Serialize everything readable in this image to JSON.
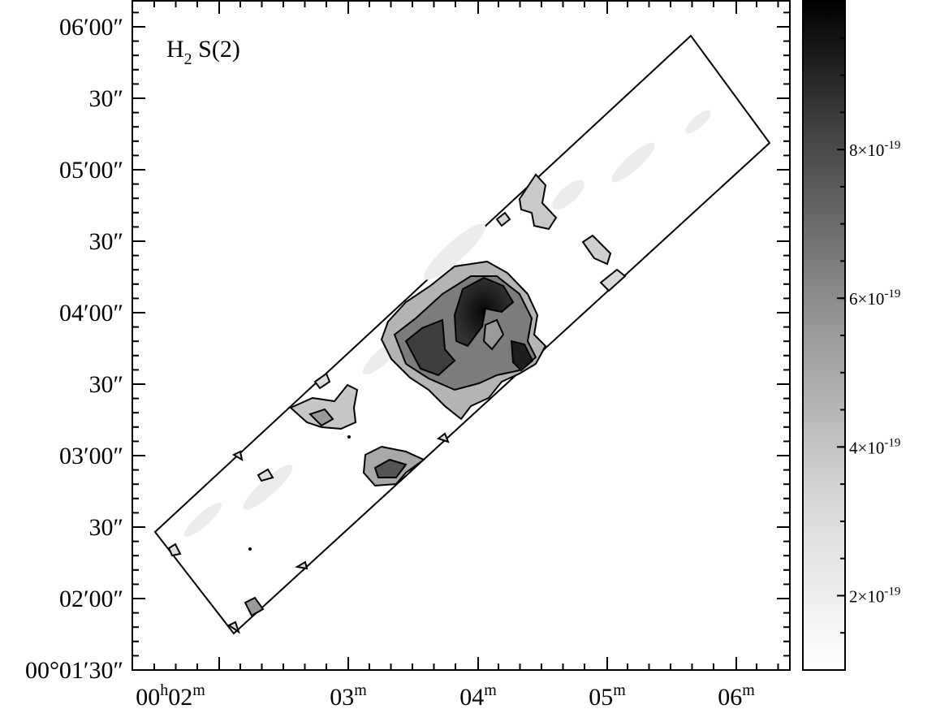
{
  "chart_data": {
    "type": "heatmap",
    "title": "H2 S(2)",
    "title_parts": {
      "base": "H",
      "sub": "2",
      "rest": " S(2)"
    },
    "x_axis": {
      "label": "",
      "ticks": [
        {
          "h": "00",
          "h_unit": "h",
          "m": "02",
          "m_unit": "m"
        },
        {
          "m": "03",
          "m_unit": "m"
        },
        {
          "m": "04",
          "m_unit": "m"
        },
        {
          "m": "05",
          "m_unit": "m"
        },
        {
          "m": "06",
          "m_unit": "m"
        }
      ]
    },
    "y_axis": {
      "label": "",
      "ticks": [
        {
          "text": "00°01′30″",
          "deg": "00",
          "min": "01",
          "sec": "30"
        },
        {
          "text": "02′00″",
          "min": "02",
          "sec": "00"
        },
        {
          "text": "30″",
          "sec": "30"
        },
        {
          "text": "03′00″",
          "min": "03",
          "sec": "00"
        },
        {
          "text": "30″",
          "sec": "30"
        },
        {
          "text": "04′00″",
          "min": "04",
          "sec": "00"
        },
        {
          "text": "30″",
          "sec": "30"
        },
        {
          "text": "05′00″",
          "min": "05",
          "sec": "00"
        },
        {
          "text": "30″",
          "sec": "30"
        },
        {
          "text": "06′00″",
          "min": "06",
          "sec": "00"
        }
      ]
    },
    "colorbar": {
      "colormap": "grayscale",
      "low_color": "#ffffff",
      "high_color": "#000000",
      "range": [
        1e-19,
        1e-18
      ],
      "ticks": [
        {
          "value": 2e-19,
          "mantissa": "2",
          "exponent": "-19"
        },
        {
          "value": 4e-19,
          "mantissa": "4",
          "exponent": "-19"
        },
        {
          "value": 6e-19,
          "mantissa": "6",
          "exponent": "-19"
        },
        {
          "value": 8e-19,
          "mantissa": "8",
          "exponent": "-19"
        }
      ]
    },
    "grid": false,
    "contours": true,
    "legend": "none"
  }
}
